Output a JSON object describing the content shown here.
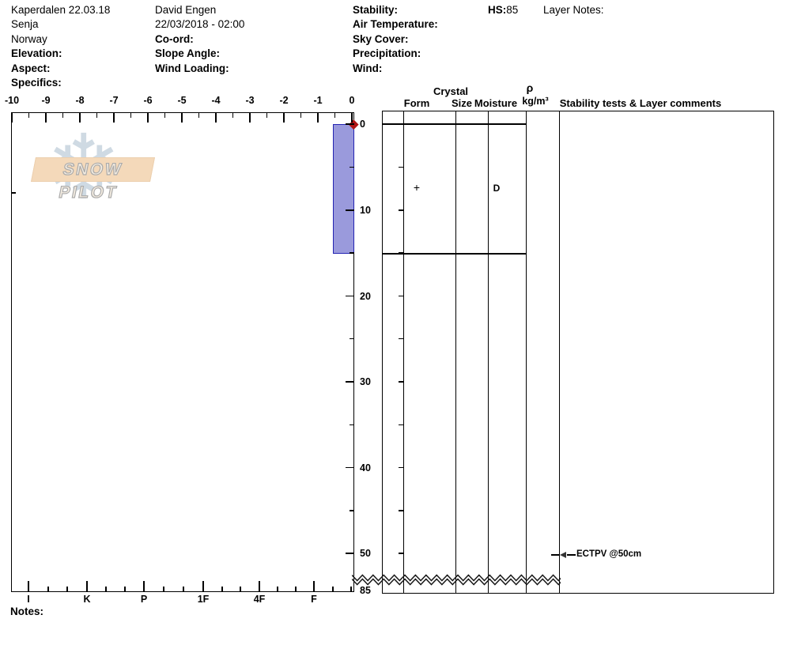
{
  "header": {
    "location": {
      "title": "Kaperdalen 22.03.18",
      "region": "Senja",
      "country": "Norway",
      "elevation_label": "Elevation:",
      "aspect_label": "Aspect:",
      "specifics_label": "Specifics:"
    },
    "observer": {
      "name": "David Engen",
      "datetime": "22/03/2018 - 02:00",
      "coord_label": "Co-ord:",
      "slope_angle_label": "Slope Angle:",
      "wind_loading_label": "Wind Loading:"
    },
    "conditions": {
      "stability_label": "Stability:",
      "air_temperature_label": "Air Temperature:",
      "sky_cover_label": "Sky Cover:",
      "precipitation_label": "Precipitation:",
      "wind_label": "Wind:"
    },
    "hs_label": "HS:",
    "hs_value": "85",
    "layer_notes_label": "Layer Notes:"
  },
  "watermark": {
    "text": "SNOW PILOT",
    "snowflake_icon": "❄"
  },
  "table_headers": {
    "crystal": "Crystal",
    "form": "Form",
    "size": "Size",
    "moisture": "Moisture",
    "rho": "ρ",
    "rho_unit": "kg/m³",
    "comments": "Stability tests & Layer comments"
  },
  "chart_data": {
    "type": "snow-profile",
    "title": "Kaperdalen 22.03.18 snow pit profile",
    "hs_cm": 85,
    "temperature_axis": {
      "unit": "°C",
      "range": [
        -10,
        0
      ],
      "labels": [
        "-10",
        "-9",
        "-8",
        "-7",
        "-6",
        "-5",
        "-4",
        "-3",
        "-2",
        "-1",
        "0"
      ]
    },
    "hardness_axis": {
      "labels": [
        "I",
        "K",
        "P",
        "1F",
        "4F",
        "F"
      ]
    },
    "depth_axis": {
      "unit": "cm",
      "labels": [
        "0",
        "10",
        "20",
        "30",
        "40",
        "50"
      ],
      "break_label": "85",
      "total_depth_cm": 85
    },
    "layers": [
      {
        "top_cm": 0,
        "bottom_cm": 15,
        "hardness": "F-",
        "grain_form_symbol": "+",
        "moisture_code": "D",
        "fill_color": "#9a9adc"
      }
    ],
    "temperature_profile": [
      {
        "depth_cm": 0,
        "temp_c": 0
      }
    ],
    "stability_tests": [
      {
        "test": "ECTPV",
        "depth_cm": 50,
        "label": "ECTPV @50cm"
      }
    ]
  },
  "footer": {
    "notes_label": "Notes:"
  },
  "colors": {
    "layer_fill": "#9a9adc",
    "layer_border": "#2323b2",
    "temp_point": "#b01414",
    "banner_fill": "#f4d9ba",
    "snowflake": "#cfdae3",
    "line": "#000000"
  }
}
